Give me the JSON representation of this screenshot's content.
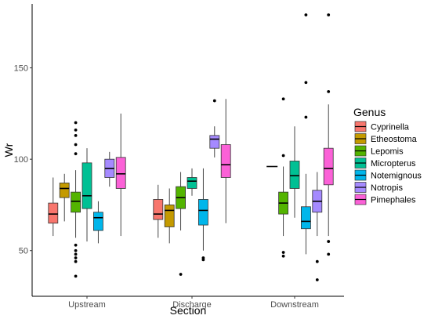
{
  "chart_data": {
    "type": "box",
    "xlabel": "Section",
    "ylabel": "Wr",
    "ylim": [
      25,
      185
    ],
    "y_ticks": [
      50,
      100,
      150
    ],
    "grid": false,
    "legend_position": "right",
    "legend_title": "Genus",
    "categories": [
      "Upstream",
      "Discharge",
      "Downstream"
    ],
    "series": [
      {
        "name": "Cyprinella",
        "color": "#F8766D",
        "boxes": [
          {
            "section": "Upstream",
            "min": 58,
            "q1": 65,
            "median": 70,
            "q3": 76,
            "max": 90,
            "outliers": []
          },
          {
            "section": "Discharge",
            "min": 57,
            "q1": 67,
            "median": 70,
            "q3": 78,
            "max": 86,
            "outliers": []
          },
          null
        ]
      },
      {
        "name": "Etheostoma",
        "color": "#C49A00",
        "boxes": [
          {
            "section": "Upstream",
            "min": 66,
            "q1": 79,
            "median": 84,
            "q3": 87,
            "max": 92,
            "outliers": []
          },
          {
            "section": "Discharge",
            "min": 54,
            "q1": 63,
            "median": 72,
            "q3": 75,
            "max": 84,
            "outliers": []
          },
          {
            "section": "Downstream",
            "median": 96,
            "outliers": []
          }
        ]
      },
      {
        "name": "Lepomis",
        "color": "#53B400",
        "boxes": [
          {
            "section": "Upstream",
            "min": 57,
            "q1": 71,
            "median": 77,
            "q3": 82,
            "max": 94,
            "outliers": [
              36,
              44,
              46,
              48,
              50,
              53,
              103,
              108,
              113,
              116,
              120
            ]
          },
          {
            "section": "Discharge",
            "min": 61,
            "q1": 73,
            "median": 79,
            "q3": 85,
            "max": 93,
            "outliers": [
              37
            ]
          },
          {
            "section": "Downstream",
            "min": 58,
            "q1": 70,
            "median": 76,
            "q3": 82,
            "max": 96,
            "outliers": [
              47,
              49,
              102,
              133
            ]
          }
        ]
      },
      {
        "name": "Micropterus",
        "color": "#00C094",
        "boxes": [
          {
            "section": "Upstream",
            "min": 55,
            "q1": 73,
            "median": 80,
            "q3": 98,
            "max": 106,
            "outliers": []
          },
          {
            "section": "Discharge",
            "min": 80,
            "q1": 84,
            "median": 88,
            "q3": 90,
            "max": 95,
            "outliers": []
          },
          {
            "section": "Downstream",
            "min": 68,
            "q1": 84,
            "median": 91,
            "q3": 99,
            "max": 118,
            "outliers": []
          }
        ]
      },
      {
        "name": "Notemignous",
        "color": "#00B6EB",
        "boxes": [
          {
            "section": "Upstream",
            "min": 54,
            "q1": 61,
            "median": 68,
            "q3": 71,
            "max": 77,
            "outliers": []
          },
          {
            "section": "Discharge",
            "min": 50,
            "q1": 64,
            "median": 72,
            "q3": 78,
            "max": 95,
            "outliers": [
              45,
              46
            ]
          },
          {
            "section": "Downstream",
            "min": 48,
            "q1": 62,
            "median": 66,
            "q3": 74,
            "max": 92,
            "outliers": [
              123,
              142,
              179
            ]
          }
        ]
      },
      {
        "name": "Notropis",
        "color": "#A58AFF",
        "boxes": [
          {
            "section": "Upstream",
            "min": 85,
            "q1": 90,
            "median": 95,
            "q3": 100,
            "max": 104,
            "outliers": []
          },
          {
            "section": "Discharge",
            "min": 101,
            "q1": 106,
            "median": 111,
            "q3": 113,
            "max": 118,
            "outliers": [
              132
            ]
          },
          {
            "section": "Downstream",
            "min": 58,
            "q1": 71,
            "median": 77,
            "q3": 83,
            "max": 93,
            "outliers": [
              34,
              44
            ]
          }
        ]
      },
      {
        "name": "Pimephales",
        "color": "#FB61D7",
        "boxes": [
          {
            "section": "Upstream",
            "min": 58,
            "q1": 84,
            "median": 92,
            "q3": 101,
            "max": 125,
            "outliers": []
          },
          {
            "section": "Discharge",
            "min": 65,
            "q1": 90,
            "median": 97,
            "q3": 108,
            "max": 133,
            "outliers": []
          },
          {
            "section": "Downstream",
            "min": 58,
            "q1": 86,
            "median": 95,
            "q3": 106,
            "max": 130,
            "outliers": [
              48,
              55,
              137,
              179
            ]
          }
        ]
      }
    ]
  }
}
